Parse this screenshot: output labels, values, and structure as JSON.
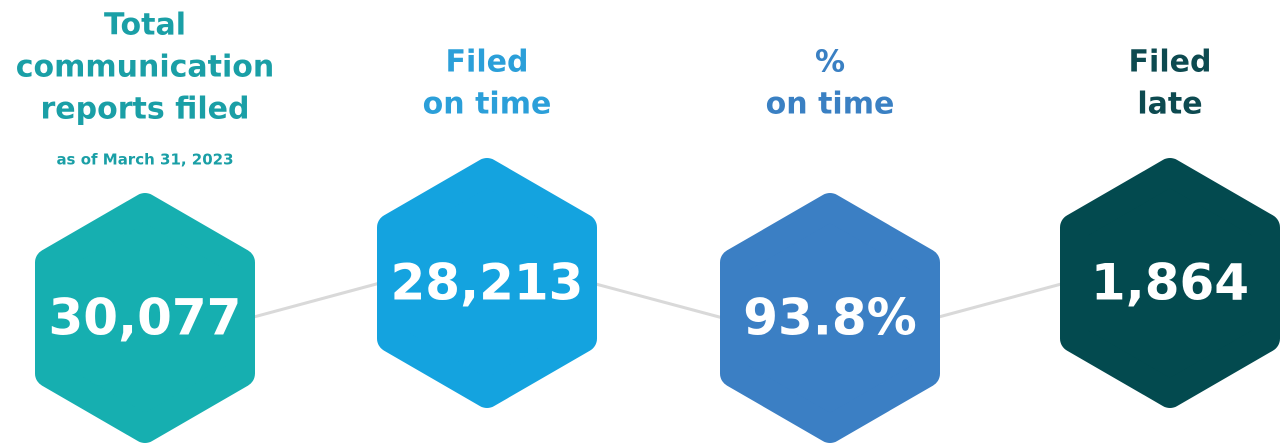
{
  "items": [
    {
      "title": [
        "Total",
        "communication",
        "reports filed"
      ],
      "subtitle": "as of March 31, 2023",
      "value": "30,077",
      "title_color": "#1a9fa6",
      "color": "#16afb0"
    },
    {
      "title": [
        "Filed",
        "on time"
      ],
      "value": "28,213",
      "title_color": "#2b9fd9",
      "color": "#14a3df"
    },
    {
      "title": [
        "%",
        "on time"
      ],
      "value": "93.8%",
      "title_color": "#3a80c3",
      "color": "#3b7fc4"
    },
    {
      "title": [
        "Filed",
        "late"
      ],
      "value": "1,864",
      "title_color": "#0d4a50",
      "color": "#034a4f"
    }
  ]
}
